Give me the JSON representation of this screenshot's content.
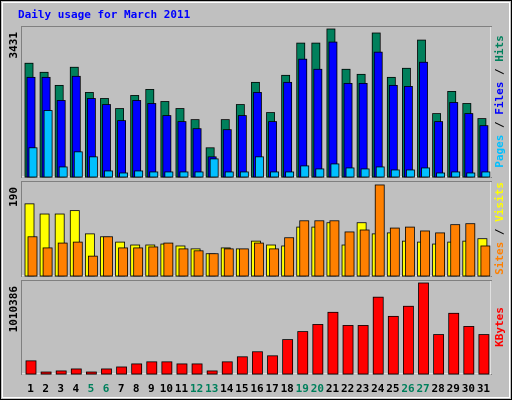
{
  "title": "Daily usage for March 2011",
  "legend_separator": " / ",
  "chart_data": [
    {
      "type": "bar",
      "categories": [
        "1",
        "2",
        "3",
        "4",
        "5",
        "6",
        "7",
        "8",
        "9",
        "10",
        "11",
        "12",
        "13",
        "14",
        "15",
        "16",
        "17",
        "18",
        "19",
        "20",
        "21",
        "22",
        "23",
        "24",
        "25",
        "26",
        "27",
        "28",
        "29",
        "30",
        "31"
      ],
      "category_colors": [
        "#000000",
        "#000000",
        "#000000",
        "#000000",
        "#00805c",
        "#00805c",
        "#000000",
        "#000000",
        "#000000",
        "#000000",
        "#000000",
        "#00805c",
        "#00805c",
        "#000000",
        "#000000",
        "#000000",
        "#000000",
        "#000000",
        "#00805c",
        "#00805c",
        "#000000",
        "#000000",
        "#000000",
        "#000000",
        "#000000",
        "#00805c",
        "#00805c",
        "#000000",
        "#000000",
        "#000000",
        "#000000"
      ],
      "ylim": [
        0,
        3431
      ],
      "yticks": [
        3431
      ],
      "series": [
        {
          "name": "Hits",
          "color": "#00805c",
          "values": [
            2637,
            2427,
            2124,
            2544,
            1960,
            1820,
            1587,
            1890,
            2030,
            1750,
            1587,
            1330,
            677,
            1330,
            1680,
            2194,
            1494,
            2357,
            3104,
            3104,
            3431,
            2497,
            2380,
            3338,
            2310,
            2520,
            3174,
            1470,
            1984,
            1704,
            1354
          ]
        },
        {
          "name": "Files",
          "color": "#0000ff",
          "values": [
            2310,
            2310,
            1774,
            2334,
            1820,
            1680,
            1307,
            1774,
            1704,
            1424,
            1284,
            1120,
            467,
            1097,
            1424,
            1960,
            1284,
            2194,
            2731,
            2497,
            3128,
            2170,
            2170,
            2894,
            2124,
            2100,
            2660,
            1284,
            1727,
            1470,
            1190
          ]
        },
        {
          "name": "Pages",
          "color": "#00c0ff",
          "values": [
            677,
            1540,
            233,
            583,
            467,
            140,
            93,
            140,
            117,
            117,
            117,
            117,
            420,
            117,
            117,
            467,
            117,
            117,
            257,
            187,
            303,
            210,
            187,
            233,
            163,
            163,
            210,
            93,
            117,
            93,
            117
          ]
        }
      ]
    },
    {
      "type": "bar",
      "ylim": [
        0,
        190
      ],
      "yticks": [
        190
      ],
      "series": [
        {
          "name": "Visits",
          "color": "#ffff00",
          "values": [
            149,
            128,
            128,
            135,
            87,
            81,
            70,
            64,
            64,
            66,
            62,
            56,
            46,
            58,
            56,
            72,
            64,
            62,
            101,
            101,
            110,
            64,
            110,
            87,
            89,
            72,
            70,
            66,
            70,
            72,
            77
          ]
        },
        {
          "name": "Sites",
          "color": "#ff8000",
          "values": [
            81,
            58,
            68,
            70,
            41,
            81,
            58,
            58,
            60,
            68,
            56,
            52,
            46,
            56,
            56,
            68,
            56,
            79,
            114,
            114,
            114,
            91,
            95,
            188,
            99,
            101,
            93,
            89,
            106,
            108,
            62
          ]
        }
      ]
    },
    {
      "type": "bar",
      "ylim": [
        0,
        1010386
      ],
      "yticks": [
        1010386
      ],
      "series": [
        {
          "name": "KBytes",
          "color": "#ff0000",
          "values": [
            146000,
            22000,
            34000,
            56000,
            22000,
            56000,
            78000,
            112000,
            135000,
            135000,
            112000,
            112000,
            34000,
            135000,
            191000,
            247000,
            202000,
            382000,
            471000,
            550000,
            685000,
            539000,
            539000,
            853000,
            640000,
            752000,
            1010386,
            438000,
            674000,
            528000,
            438000
          ]
        }
      ]
    }
  ]
}
